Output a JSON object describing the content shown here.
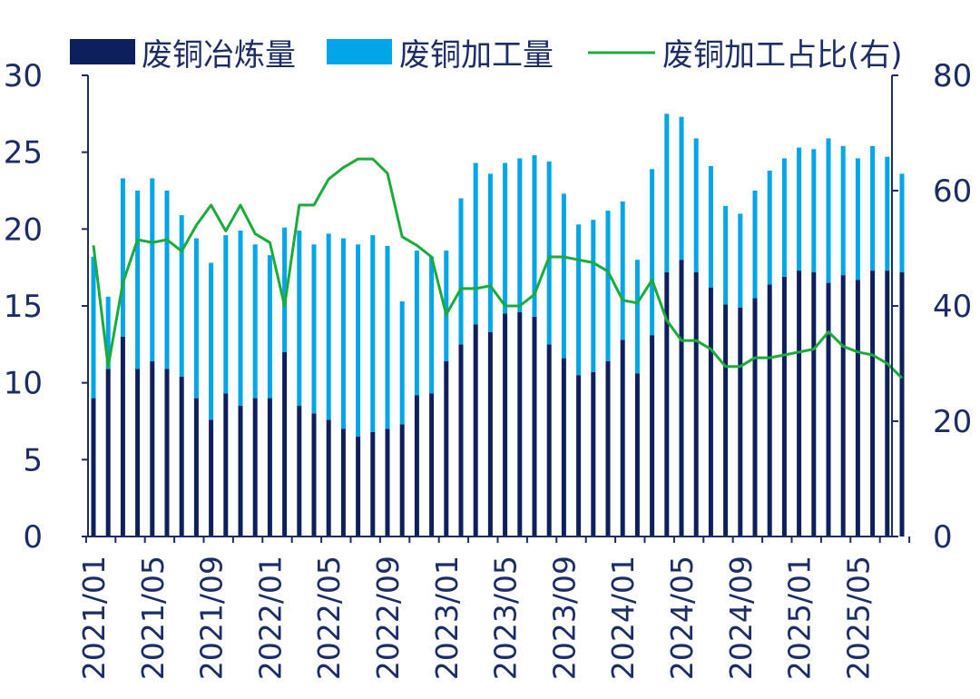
{
  "colors": {
    "smelting": "#0d1f5c",
    "processing": "#00a6e8",
    "ratio": "#1aab3b",
    "axis": "#1c2c66",
    "text": "#1c2c66"
  },
  "chart_data": {
    "type": "bar",
    "title": "",
    "legend": [
      {
        "key": "smelting",
        "label": "废铜冶炼量",
        "kind": "bar"
      },
      {
        "key": "processing",
        "label": "废铜加工量",
        "kind": "bar"
      },
      {
        "key": "ratio",
        "label": "废铜加工占比(右)",
        "kind": "line"
      }
    ],
    "legend_position": "top",
    "categories": [
      "2021/01",
      "2021/02",
      "2021/03",
      "2021/04",
      "2021/05",
      "2021/06",
      "2021/07",
      "2021/08",
      "2021/09",
      "2021/10",
      "2021/11",
      "2021/12",
      "2022/01",
      "2022/02",
      "2022/03",
      "2022/04",
      "2022/05",
      "2022/06",
      "2022/07",
      "2022/08",
      "2022/09",
      "2022/10",
      "2022/11",
      "2022/12",
      "2023/01",
      "2023/02",
      "2023/03",
      "2023/04",
      "2023/05",
      "2023/06",
      "2023/07",
      "2023/08",
      "2023/09",
      "2023/10",
      "2023/11",
      "2023/12",
      "2024/01",
      "2024/02",
      "2024/03",
      "2024/04",
      "2024/05",
      "2024/06",
      "2024/07",
      "2024/08",
      "2024/09",
      "2024/10",
      "2024/11",
      "2024/12",
      "2025/01",
      "2025/02",
      "2025/03",
      "2025/04",
      "2025/05",
      "2025/06",
      "2025/07",
      "2025/08"
    ],
    "x_tick_labels": [
      "2021/01",
      "2021/05",
      "2021/09",
      "2022/01",
      "2022/05",
      "2022/09",
      "2023/01",
      "2023/05",
      "2023/09",
      "2024/01",
      "2024/05",
      "2024/09",
      "2025/01",
      "2025/05"
    ],
    "series": [
      {
        "name": "废铜冶炼量",
        "key": "smelting",
        "axis": "left",
        "values": [
          9.0,
          10.9,
          13.0,
          10.9,
          11.4,
          10.9,
          10.4,
          9.0,
          7.6,
          9.3,
          8.5,
          9.0,
          9.0,
          12.0,
          8.5,
          8.0,
          7.6,
          7.0,
          6.5,
          6.8,
          7.0,
          7.3,
          9.2,
          9.3,
          11.4,
          12.5,
          13.8,
          13.3,
          14.5,
          14.6,
          14.3,
          12.5,
          11.6,
          10.5,
          10.7,
          11.4,
          12.8,
          10.6,
          13.1,
          17.2,
          18.0,
          17.2,
          16.2,
          15.1,
          14.9,
          15.5,
          16.4,
          16.9,
          17.3,
          17.2,
          16.5,
          17.0,
          16.7,
          17.3,
          17.3,
          17.2
        ]
      },
      {
        "name": "废铜加工量",
        "key": "processing",
        "axis": "left",
        "values": [
          9.2,
          4.7,
          10.3,
          11.6,
          11.9,
          11.6,
          10.5,
          10.4,
          10.2,
          10.3,
          11.4,
          10.0,
          9.3,
          8.1,
          11.4,
          11.0,
          12.1,
          12.4,
          12.5,
          12.8,
          11.9,
          8.0,
          9.4,
          8.9,
          7.2,
          9.5,
          10.5,
          10.3,
          9.8,
          10.0,
          10.5,
          11.9,
          10.7,
          9.8,
          9.9,
          9.8,
          9.0,
          7.4,
          10.8,
          10.3,
          9.3,
          8.7,
          7.9,
          6.4,
          6.1,
          7.0,
          7.4,
          7.7,
          8.0,
          8.0,
          9.4,
          8.4,
          7.9,
          8.1,
          7.4,
          6.4
        ]
      },
      {
        "name": "废铜加工占比(右)",
        "key": "ratio",
        "axis": "right",
        "values": [
          50.5,
          29.5,
          44.0,
          51.5,
          51.0,
          51.5,
          49.5,
          54.0,
          57.5,
          53.0,
          57.5,
          52.5,
          51.0,
          40.0,
          57.5,
          57.5,
          62.0,
          64.0,
          65.5,
          65.5,
          63.0,
          52.0,
          50.5,
          48.5,
          38.5,
          43.0,
          43.0,
          43.5,
          40.0,
          40.0,
          42.0,
          48.5,
          48.5,
          48.0,
          47.5,
          46.0,
          41.0,
          40.5,
          44.5,
          37.5,
          34.0,
          34.0,
          32.5,
          29.5,
          29.5,
          31.0,
          31.0,
          31.5,
          32.0,
          32.5,
          35.5,
          33.0,
          32.0,
          31.5,
          30.0,
          27.5
        ]
      }
    ],
    "ylim_left": [
      0,
      30
    ],
    "yticks_left": [
      0,
      5,
      10,
      15,
      20,
      25,
      30
    ],
    "ylim_right": [
      0,
      80
    ],
    "yticks_right": [
      0,
      20,
      40,
      60,
      80
    ],
    "xlabel": "",
    "ylabel": "",
    "ylabel_right": "",
    "grid": false
  }
}
